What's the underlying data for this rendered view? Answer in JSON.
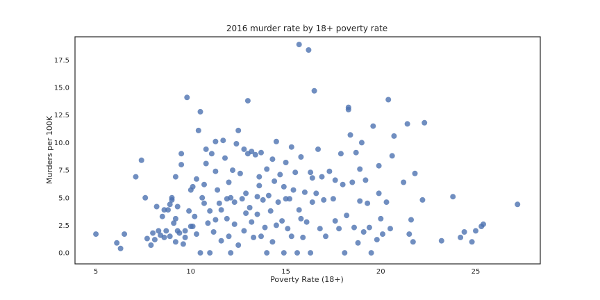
{
  "chart_data": {
    "type": "scatter",
    "title": "2016 murder rate by 18+ poverty rate",
    "xlabel": "Poverty Rate (18+)",
    "ylabel": "Murders per 100K",
    "xlim": [
      3.9,
      28.4
    ],
    "ylim": [
      -1.0,
      19.6
    ],
    "xticks": [
      5,
      10,
      15,
      20,
      25
    ],
    "yticks": [
      0.0,
      2.5,
      5.0,
      7.5,
      10.0,
      12.5,
      15.0,
      17.5
    ],
    "grid": false,
    "color": "#4c72b0",
    "points": [
      [
        5.0,
        1.7
      ],
      [
        6.1,
        0.9
      ],
      [
        6.3,
        0.4
      ],
      [
        6.5,
        1.7
      ],
      [
        7.1,
        6.9
      ],
      [
        7.4,
        8.4
      ],
      [
        7.6,
        5.0
      ],
      [
        7.7,
        1.3
      ],
      [
        7.9,
        0.7
      ],
      [
        8.0,
        1.8
      ],
      [
        8.1,
        1.2
      ],
      [
        8.2,
        4.2
      ],
      [
        8.3,
        2.0
      ],
      [
        8.4,
        1.6
      ],
      [
        8.5,
        3.3
      ],
      [
        8.6,
        3.9
      ],
      [
        8.7,
        2.0
      ],
      [
        8.8,
        3.9
      ],
      [
        8.9,
        4.4
      ],
      [
        8.9,
        1.5
      ],
      [
        9.0,
        4.8
      ],
      [
        9.0,
        5.0
      ],
      [
        9.1,
        2.7
      ],
      [
        9.2,
        6.9
      ],
      [
        9.2,
        1.0
      ],
      [
        9.3,
        2.0
      ],
      [
        9.3,
        4.2
      ],
      [
        9.4,
        1.8
      ],
      [
        9.5,
        8.0
      ],
      [
        9.5,
        9.0
      ],
      [
        9.6,
        0.8
      ],
      [
        9.7,
        2.0
      ],
      [
        9.7,
        1.4
      ],
      [
        9.8,
        14.1
      ],
      [
        9.9,
        3.8
      ],
      [
        10.0,
        5.7
      ],
      [
        10.0,
        2.4
      ],
      [
        10.1,
        6.0
      ],
      [
        10.2,
        3.3
      ],
      [
        10.3,
        1.7
      ],
      [
        10.3,
        6.7
      ],
      [
        10.4,
        11.1
      ],
      [
        10.5,
        12.8
      ],
      [
        10.5,
        0.0
      ],
      [
        10.6,
        5.0
      ],
      [
        10.7,
        6.2
      ],
      [
        10.8,
        8.1
      ],
      [
        10.8,
        9.4
      ],
      [
        10.9,
        2.7
      ],
      [
        11.0,
        3.8
      ],
      [
        11.0,
        0.0
      ],
      [
        11.1,
        9.0
      ],
      [
        11.2,
        1.9
      ],
      [
        11.3,
        10.1
      ],
      [
        11.3,
        3.0
      ],
      [
        11.4,
        5.7
      ],
      [
        11.5,
        4.5
      ],
      [
        11.6,
        1.1
      ],
      [
        11.6,
        3.9
      ],
      [
        11.7,
        10.2
      ],
      [
        11.8,
        8.6
      ],
      [
        11.9,
        4.9
      ],
      [
        11.9,
        3.1
      ],
      [
        12.0,
        6.4
      ],
      [
        12.0,
        1.5
      ],
      [
        12.1,
        0.0
      ],
      [
        12.2,
        7.5
      ],
      [
        12.3,
        4.6
      ],
      [
        12.3,
        2.6
      ],
      [
        12.4,
        9.9
      ],
      [
        12.5,
        11.1
      ],
      [
        12.5,
        0.7
      ],
      [
        12.6,
        7.2
      ],
      [
        12.7,
        4.9
      ],
      [
        12.8,
        9.4
      ],
      [
        12.8,
        2.0
      ],
      [
        12.9,
        5.4
      ],
      [
        13.0,
        13.8
      ],
      [
        13.0,
        9.0
      ],
      [
        13.1,
        4.1
      ],
      [
        13.2,
        9.2
      ],
      [
        13.2,
        2.8
      ],
      [
        13.3,
        1.4
      ],
      [
        13.4,
        8.9
      ],
      [
        13.5,
        3.5
      ],
      [
        13.5,
        5.1
      ],
      [
        13.6,
        6.9
      ],
      [
        13.7,
        1.5
      ],
      [
        13.7,
        9.1
      ],
      [
        13.8,
        4.8
      ],
      [
        13.9,
        2.3
      ],
      [
        14.0,
        7.6
      ],
      [
        14.0,
        0.0
      ],
      [
        14.1,
        5.2
      ],
      [
        14.2,
        3.8
      ],
      [
        14.3,
        1.0
      ],
      [
        14.4,
        6.5
      ],
      [
        14.5,
        2.5
      ],
      [
        14.5,
        10.1
      ],
      [
        14.6,
        4.6
      ],
      [
        14.7,
        7.1
      ],
      [
        14.8,
        2.9
      ],
      [
        14.9,
        0.0
      ],
      [
        14.9,
        6.0
      ],
      [
        15.0,
        8.2
      ],
      [
        15.1,
        2.2
      ],
      [
        15.2,
        4.9
      ],
      [
        15.3,
        9.6
      ],
      [
        15.3,
        1.5
      ],
      [
        15.4,
        5.7
      ],
      [
        15.5,
        7.3
      ],
      [
        15.6,
        0.0
      ],
      [
        15.7,
        18.9
      ],
      [
        15.7,
        3.9
      ],
      [
        15.8,
        8.7
      ],
      [
        15.9,
        1.4
      ],
      [
        16.0,
        5.5
      ],
      [
        16.1,
        2.8
      ],
      [
        16.2,
        18.4
      ],
      [
        16.3,
        0.0
      ],
      [
        16.3,
        7.3
      ],
      [
        16.4,
        4.6
      ],
      [
        16.5,
        14.7
      ],
      [
        16.6,
        5.4
      ],
      [
        16.7,
        9.4
      ],
      [
        16.8,
        2.2
      ],
      [
        16.9,
        6.9
      ],
      [
        17.0,
        4.8
      ],
      [
        17.1,
        1.5
      ],
      [
        17.3,
        7.4
      ],
      [
        17.5,
        4.9
      ],
      [
        17.6,
        6.6
      ],
      [
        17.8,
        2.2
      ],
      [
        17.9,
        9.0
      ],
      [
        18.0,
        6.2
      ],
      [
        18.1,
        0.0
      ],
      [
        18.2,
        3.4
      ],
      [
        18.3,
        13.2
      ],
      [
        18.3,
        13.0
      ],
      [
        18.4,
        10.7
      ],
      [
        18.5,
        6.4
      ],
      [
        18.6,
        2.3
      ],
      [
        18.7,
        9.1
      ],
      [
        18.8,
        0.9
      ],
      [
        18.9,
        4.7
      ],
      [
        19.0,
        10.0
      ],
      [
        19.1,
        1.9
      ],
      [
        19.2,
        6.6
      ],
      [
        19.3,
        4.5
      ],
      [
        19.4,
        2.3
      ],
      [
        19.5,
        0.0
      ],
      [
        19.6,
        11.5
      ],
      [
        19.8,
        1.2
      ],
      [
        19.9,
        7.9
      ],
      [
        20.0,
        3.1
      ],
      [
        20.1,
        1.7
      ],
      [
        20.3,
        4.6
      ],
      [
        20.4,
        13.9
      ],
      [
        20.5,
        2.2
      ],
      [
        20.6,
        8.8
      ],
      [
        21.2,
        6.4
      ],
      [
        21.4,
        11.7
      ],
      [
        21.5,
        1.7
      ],
      [
        21.6,
        3.0
      ],
      [
        21.7,
        1.0
      ],
      [
        21.8,
        7.2
      ],
      [
        22.2,
        4.8
      ],
      [
        22.3,
        11.8
      ],
      [
        23.2,
        1.1
      ],
      [
        23.8,
        5.1
      ],
      [
        24.2,
        1.4
      ],
      [
        24.4,
        1.9
      ],
      [
        24.8,
        1.0
      ],
      [
        25.0,
        2.0
      ],
      [
        25.3,
        2.4
      ],
      [
        25.4,
        2.6
      ],
      [
        27.2,
        4.4
      ],
      [
        8.6,
        1.4
      ],
      [
        9.2,
        3.1
      ],
      [
        10.1,
        2.4
      ],
      [
        10.7,
        4.5
      ],
      [
        11.3,
        7.4
      ],
      [
        12.1,
        5.0
      ],
      [
        12.9,
        3.6
      ],
      [
        13.6,
        6.1
      ],
      [
        14.3,
        8.5
      ],
      [
        15.0,
        4.9
      ],
      [
        15.8,
        3.1
      ],
      [
        16.4,
        6.8
      ],
      [
        17.6,
        2.9
      ],
      [
        18.9,
        7.6
      ],
      [
        19.9,
        5.4
      ],
      [
        20.7,
        10.6
      ]
    ]
  }
}
